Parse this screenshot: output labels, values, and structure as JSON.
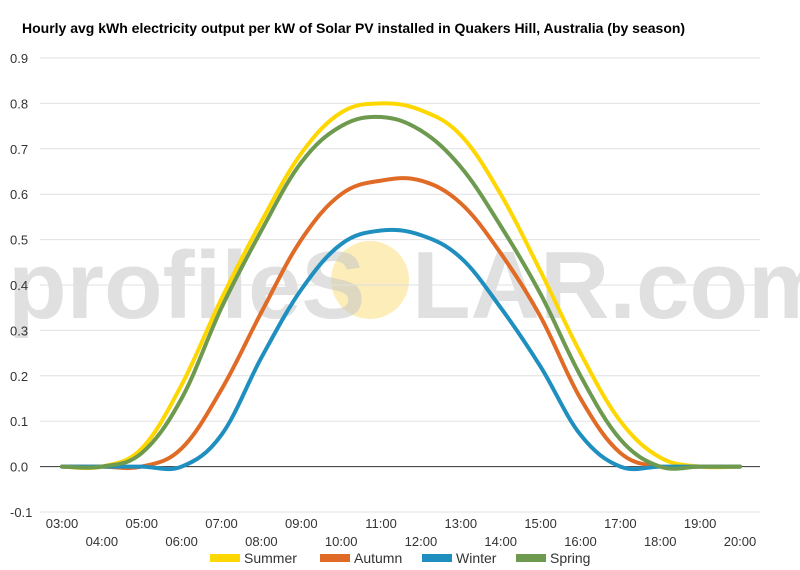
{
  "watermark": {
    "left_text": "profileS",
    "right_text": "LAR.com",
    "sun_color": "#fde9a8"
  },
  "chart_data": {
    "type": "line",
    "title": "Hourly avg kWh electricity output per kW of Solar PV installed in Quakers Hill, Australia (by season)",
    "xlabel": "",
    "ylabel": "",
    "x": [
      "03:00",
      "04:00",
      "05:00",
      "06:00",
      "07:00",
      "08:00",
      "09:00",
      "10:00",
      "11:00",
      "12:00",
      "13:00",
      "14:00",
      "15:00",
      "16:00",
      "17:00",
      "18:00",
      "19:00",
      "20:00"
    ],
    "ylim": [
      -0.1,
      0.9
    ],
    "y_ticks": [
      "-0.1",
      "0.0",
      "0.1",
      "0.2",
      "0.3",
      "0.4",
      "0.5",
      "0.6",
      "0.7",
      "0.8",
      "0.9"
    ],
    "grid": true,
    "legend_position": "bottom",
    "series": [
      {
        "name": "Summer",
        "color": "#FFD700",
        "values": [
          0.0,
          0.0,
          0.04,
          0.18,
          0.37,
          0.54,
          0.69,
          0.78,
          0.8,
          0.785,
          0.73,
          0.6,
          0.43,
          0.25,
          0.1,
          0.02,
          0.0,
          0.0
        ]
      },
      {
        "name": "Autumn",
        "color": "#E06B26",
        "values": [
          0.0,
          0.0,
          0.0,
          0.04,
          0.17,
          0.34,
          0.5,
          0.6,
          0.63,
          0.63,
          0.58,
          0.47,
          0.33,
          0.15,
          0.03,
          0.0,
          0.0,
          0.0
        ]
      },
      {
        "name": "Winter",
        "color": "#1F8FBF",
        "values": [
          0.0,
          0.0,
          0.0,
          0.0,
          0.07,
          0.24,
          0.39,
          0.49,
          0.52,
          0.51,
          0.46,
          0.35,
          0.22,
          0.07,
          0.0,
          0.0,
          0.0,
          0.0
        ]
      },
      {
        "name": "Spring",
        "color": "#6E9A50",
        "values": [
          0.0,
          0.0,
          0.03,
          0.15,
          0.35,
          0.52,
          0.67,
          0.75,
          0.77,
          0.74,
          0.66,
          0.53,
          0.38,
          0.2,
          0.06,
          0.0,
          0.0,
          0.0
        ]
      }
    ]
  }
}
